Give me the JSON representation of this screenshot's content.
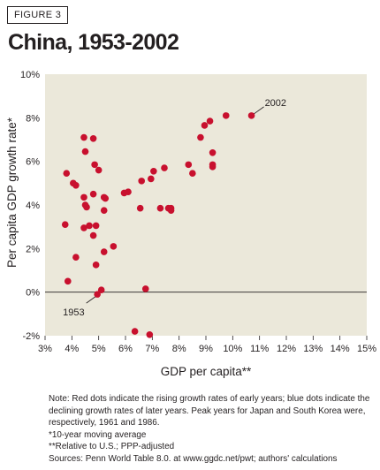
{
  "figure_label": "FIGURE 3",
  "title": "China, 1953-2002",
  "chart_data": {
    "type": "scatter",
    "title": "China, 1953-2002",
    "xlabel": "GDP per capita**",
    "ylabel": "Per capita GDP growth rate*",
    "xlim": [
      3,
      15
    ],
    "ylim": [
      -2,
      10
    ],
    "x_ticks": [
      "3%",
      "4%",
      "5%",
      "6%",
      "7%",
      "8%",
      "9%",
      "10%",
      "11%",
      "12%",
      "13%",
      "14%",
      "15%"
    ],
    "y_ticks": [
      "-2%",
      "0%",
      "2%",
      "4%",
      "6%",
      "8%",
      "10%"
    ],
    "point_color": "#c8102e",
    "background_color": "#ebe8da",
    "annotations": [
      {
        "text": "1953",
        "x": 5.0,
        "y": -0.1
      },
      {
        "text": "2002",
        "x": 10.7,
        "y": 8.1
      }
    ],
    "points": [
      {
        "x": 3.75,
        "y": 3.1
      },
      {
        "x": 3.8,
        "y": 5.45
      },
      {
        "x": 3.85,
        "y": 0.5
      },
      {
        "x": 4.05,
        "y": 5.0
      },
      {
        "x": 4.15,
        "y": 4.9
      },
      {
        "x": 4.15,
        "y": 1.6
      },
      {
        "x": 4.45,
        "y": 7.1
      },
      {
        "x": 4.5,
        "y": 6.45
      },
      {
        "x": 4.45,
        "y": 4.35
      },
      {
        "x": 4.5,
        "y": 4.0
      },
      {
        "x": 4.55,
        "y": 3.9
      },
      {
        "x": 4.45,
        "y": 2.95
      },
      {
        "x": 4.65,
        "y": 3.05
      },
      {
        "x": 4.8,
        "y": 7.05
      },
      {
        "x": 4.8,
        "y": 4.5
      },
      {
        "x": 4.85,
        "y": 5.85
      },
      {
        "x": 4.9,
        "y": 3.05
      },
      {
        "x": 4.8,
        "y": 2.6
      },
      {
        "x": 5.0,
        "y": 5.6
      },
      {
        "x": 4.9,
        "y": 1.25
      },
      {
        "x": 4.95,
        "y": -0.1
      },
      {
        "x": 5.1,
        "y": 0.1
      },
      {
        "x": 5.2,
        "y": 4.35
      },
      {
        "x": 5.25,
        "y": 4.3
      },
      {
        "x": 5.2,
        "y": 3.75
      },
      {
        "x": 5.2,
        "y": 1.85
      },
      {
        "x": 5.55,
        "y": 2.1
      },
      {
        "x": 5.95,
        "y": 4.55
      },
      {
        "x": 6.1,
        "y": 4.6
      },
      {
        "x": 6.35,
        "y": -1.8
      },
      {
        "x": 6.6,
        "y": 5.1
      },
      {
        "x": 6.55,
        "y": 3.85
      },
      {
        "x": 6.75,
        "y": 0.15
      },
      {
        "x": 6.9,
        "y": -1.95
      },
      {
        "x": 6.95,
        "y": 5.2
      },
      {
        "x": 7.05,
        "y": 5.55
      },
      {
        "x": 7.3,
        "y": 3.85
      },
      {
        "x": 7.45,
        "y": 5.7
      },
      {
        "x": 7.6,
        "y": 3.85
      },
      {
        "x": 7.7,
        "y": 3.85
      },
      {
        "x": 7.7,
        "y": 3.75
      },
      {
        "x": 8.35,
        "y": 5.85
      },
      {
        "x": 8.5,
        "y": 5.45
      },
      {
        "x": 8.8,
        "y": 7.1
      },
      {
        "x": 8.95,
        "y": 7.65
      },
      {
        "x": 9.15,
        "y": 7.85
      },
      {
        "x": 9.25,
        "y": 6.4
      },
      {
        "x": 9.25,
        "y": 5.85
      },
      {
        "x": 9.25,
        "y": 5.75
      },
      {
        "x": 9.75,
        "y": 8.1
      },
      {
        "x": 10.7,
        "y": 8.1
      }
    ],
    "grid": false,
    "legend": "none"
  },
  "notes": {
    "note": "Note: Red dots indicate the rising growth rates of early years; blue dots indicate the declining growth rates of later years. Peak years for Japan and South Korea were, respectively, 1961 and 1986.",
    "footnote_1": "*10-year moving average",
    "footnote_2": "**Relative to U.S.; PPP-adjusted",
    "sources": "Sources: Penn World Table 8.0. at www.ggdc.net/pwt; authors' calculations"
  }
}
